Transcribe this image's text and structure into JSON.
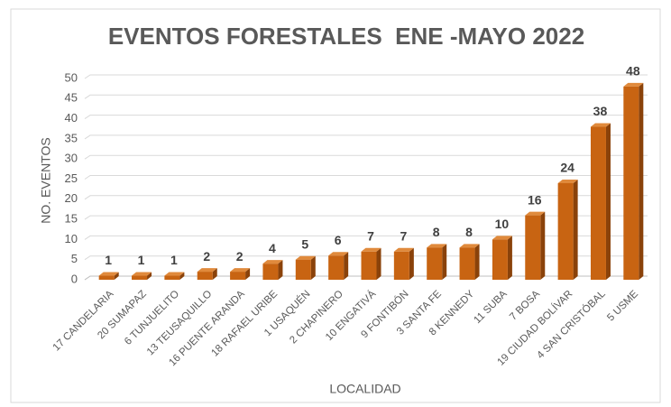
{
  "chart_data": {
    "type": "bar3d",
    "title": "EVENTOS FORESTALES  ENE -MAYO 2022",
    "x_label": "LOCALIDAD",
    "y_label": "NO. EVENTOS",
    "categories": [
      "17 CANDELARIA",
      "20 SUMAPAZ",
      "6 TUNJUELITO",
      "13 TEUSAQUILLO",
      "16 PUENTE ARANDA",
      "18 RAFAEL URIBE",
      "1 USAQUÉN",
      "2 CHAPINERO",
      "10 ENGATIVÁ",
      "9 FONTIBÓN",
      "3 SANTA FE",
      "8 KENNEDY",
      "11 SUBA",
      "7 BOSA",
      "19 CIUDAD BOLÍVAR",
      "4 SAN CRISTÓBAL",
      "5 USME"
    ],
    "values": [
      1,
      1,
      1,
      2,
      2,
      4,
      5,
      6,
      7,
      7,
      8,
      8,
      10,
      16,
      24,
      38,
      48
    ],
    "color": "#c86412",
    "ylim": [
      0,
      50
    ],
    "yticks": [
      0,
      5,
      10,
      15,
      20,
      25,
      30,
      35,
      40,
      45,
      50
    ],
    "grid": true
  }
}
